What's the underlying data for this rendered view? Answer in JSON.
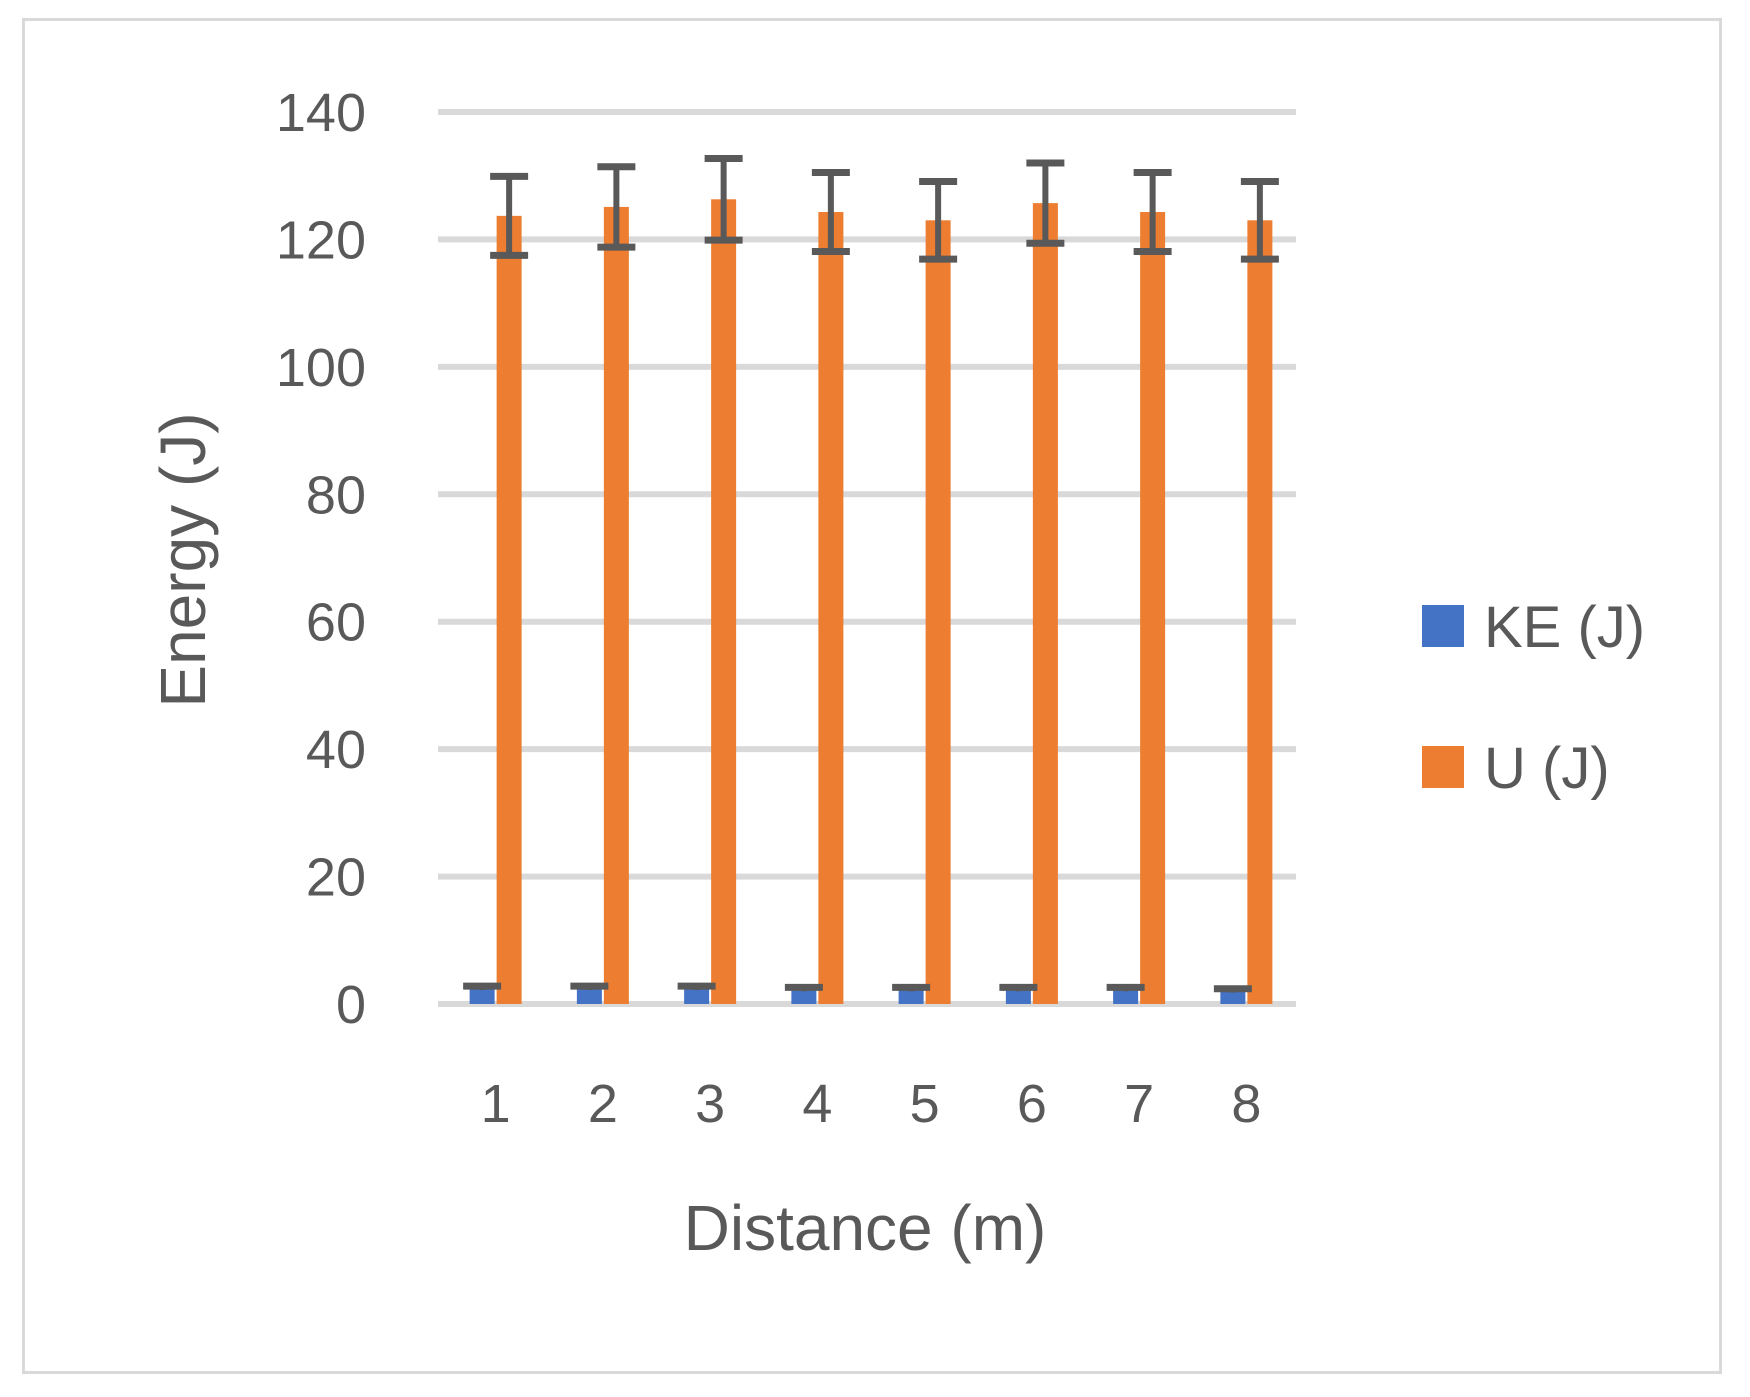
{
  "chart_data": {
    "type": "bar",
    "title": "",
    "xlabel": "Distance (m)",
    "ylabel": "Energy (J)",
    "categories": [
      "1",
      "2",
      "3",
      "4",
      "5",
      "6",
      "7",
      "8"
    ],
    "ylim": [
      0,
      140
    ],
    "yticks": [
      0,
      20,
      40,
      60,
      80,
      100,
      120,
      140
    ],
    "grid": true,
    "legend_position": "right",
    "series": [
      {
        "name": "KE (J)",
        "color": "#4472c4",
        "values": [
          2.5,
          2.5,
          2.5,
          2.3,
          2.3,
          2.3,
          2.3,
          2.1
        ],
        "error": [
          0.3,
          0.3,
          0.3,
          0.3,
          0.3,
          0.3,
          0.3,
          0.3
        ]
      },
      {
        "name": "U (J)",
        "color": "#ed7d31",
        "values": [
          123.7,
          125.1,
          126.3,
          124.3,
          123.0,
          125.7,
          124.3,
          123.0
        ],
        "error": [
          6.2,
          6.3,
          6.4,
          6.2,
          6.1,
          6.3,
          6.2,
          6.1
        ]
      }
    ]
  },
  "labels": {
    "xlabel": "Distance (m)",
    "ylabel": "Energy (J)",
    "legend": [
      "KE (J)",
      "U (J)"
    ]
  },
  "style": {
    "grid_color": "#d9d9d9",
    "errorbar_color": "#595959",
    "text_color": "#595959"
  }
}
